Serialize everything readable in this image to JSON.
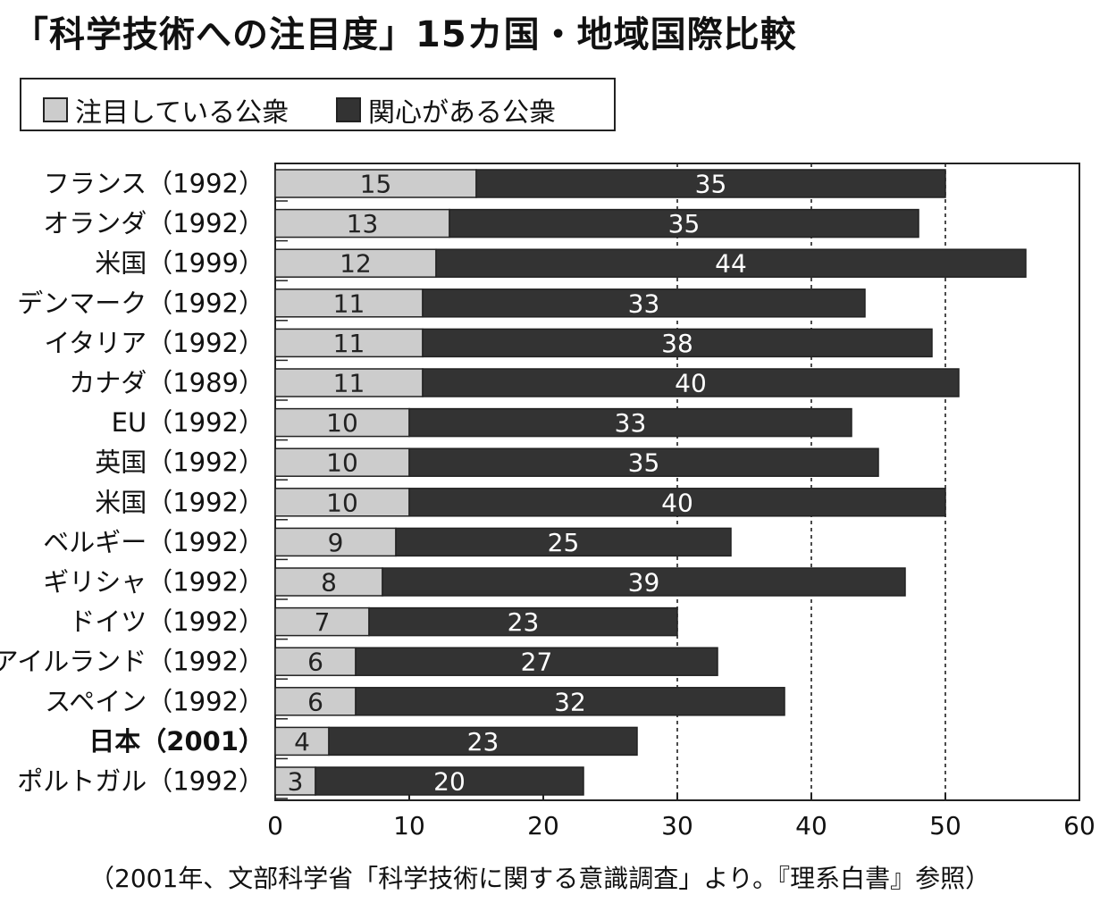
{
  "title": "「科学技術への注目度」15カ国・地域国際比較",
  "legend": {
    "attentive_label": "注目している公衆",
    "interested_label": "関心がある公衆"
  },
  "footnote": "（2001年、文部科学省「科学技術に関する意識調査」より。『理系白書』参照）",
  "colors": {
    "attentive": "#cccccc",
    "interested": "#333333",
    "border": "#222222"
  },
  "chart_data": {
    "type": "bar",
    "orientation": "horizontal",
    "stacked": true,
    "categories": [
      "フランス（1992）",
      "オランダ（1992）",
      "米国（1999）",
      "デンマーク（1992）",
      "イタリア（1992）",
      "カナダ（1989）",
      "EU（1992）",
      "英国（1992）",
      "米国（1992）",
      "ベルギー（1992）",
      "ギリシャ（1992）",
      "ドイツ（1992）",
      "アイルランド（1992）",
      "スペイン（1992）",
      "日本（2001）",
      "ポルトガル（1992）"
    ],
    "highlighted_category": "日本（2001）",
    "series": [
      {
        "name": "注目している公衆",
        "values": [
          15,
          13,
          12,
          11,
          11,
          11,
          10,
          10,
          10,
          9,
          8,
          7,
          6,
          6,
          4,
          3
        ]
      },
      {
        "name": "関心がある公衆",
        "values": [
          35,
          35,
          44,
          33,
          38,
          40,
          33,
          35,
          40,
          25,
          39,
          23,
          27,
          32,
          23,
          20
        ]
      }
    ],
    "xlim": [
      0,
      60
    ],
    "xticks": [
      "0",
      "10",
      "20",
      "30",
      "40",
      "50",
      "60"
    ],
    "grid": "vertical dashed at 30, 40, 50",
    "legend_position": "top"
  }
}
